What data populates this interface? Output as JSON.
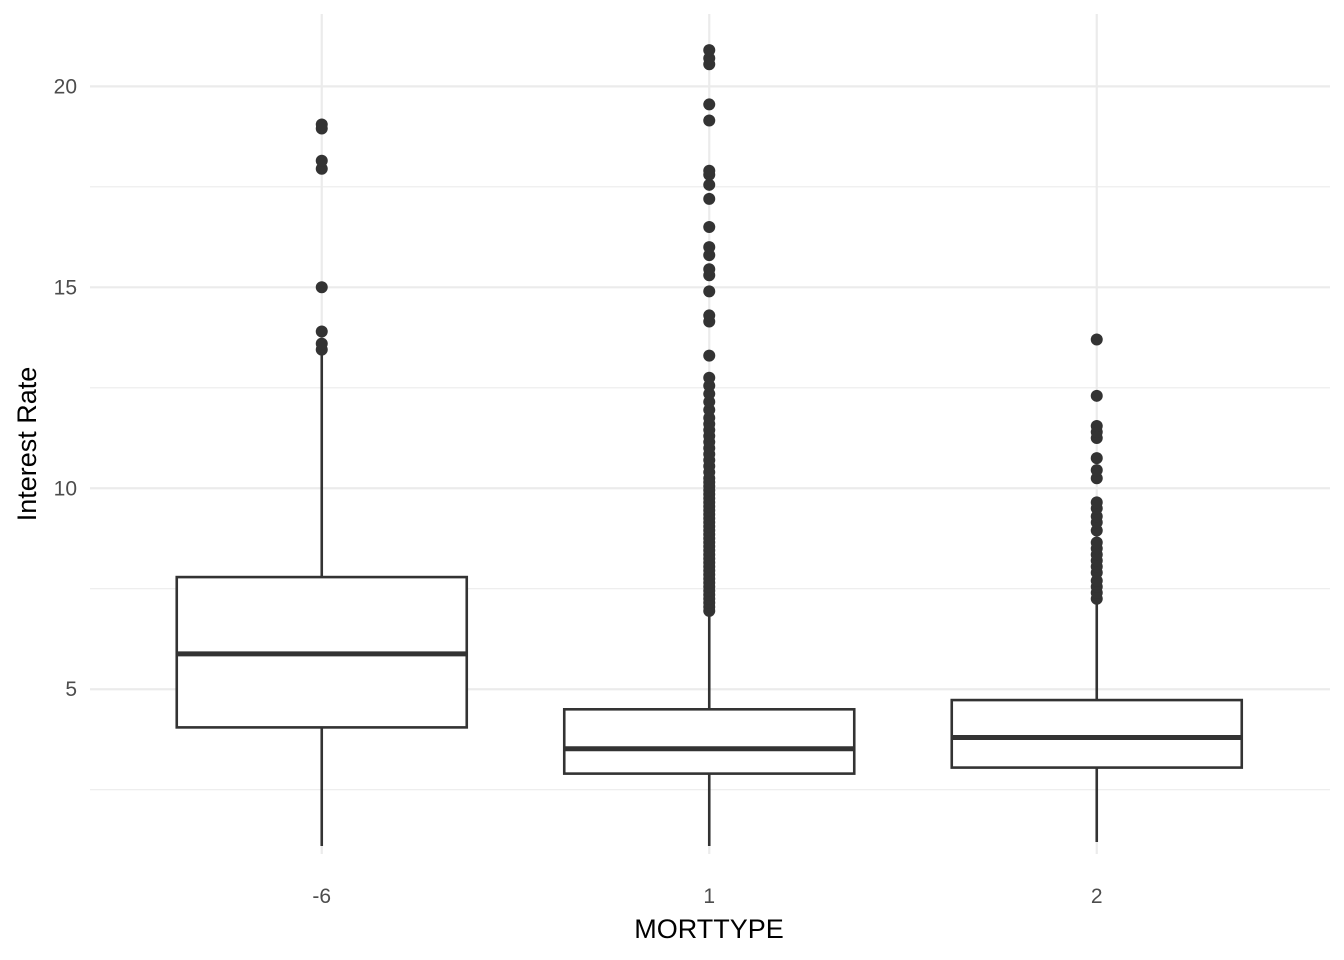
{
  "chart_data": {
    "type": "boxplot",
    "title": "",
    "xlabel": "MORTTYPE",
    "ylabel": "Interest Rate",
    "categories": [
      "-6",
      "1",
      "2"
    ],
    "y_ticks": [
      5,
      10,
      15,
      20
    ],
    "y_tick_labels": [
      "5",
      "10",
      "15",
      "20"
    ],
    "ylim": [
      0.9,
      21.8
    ],
    "grid": true,
    "colors": {
      "box_stroke": "#333333",
      "grid": "#ebebeb",
      "background": "#ffffff"
    },
    "boxes": [
      {
        "category": "-6",
        "whisker_low": 1.1,
        "q1": 4.05,
        "median": 5.88,
        "q3": 7.79,
        "whisker_high": 13.45,
        "outliers": [
          13.45,
          13.6,
          13.9,
          15.0,
          17.95,
          18.15,
          18.95,
          19.05
        ]
      },
      {
        "category": "1",
        "whisker_low": 1.1,
        "q1": 2.9,
        "median": 3.52,
        "q3": 4.5,
        "whisker_high": 6.9,
        "outliers": [
          6.95,
          7.05,
          7.15,
          7.25,
          7.35,
          7.45,
          7.55,
          7.65,
          7.75,
          7.85,
          7.95,
          8.05,
          8.15,
          8.25,
          8.35,
          8.45,
          8.55,
          8.65,
          8.75,
          8.85,
          8.95,
          9.05,
          9.15,
          9.25,
          9.35,
          9.45,
          9.55,
          9.65,
          9.75,
          9.85,
          9.95,
          10.05,
          10.15,
          10.25,
          10.4,
          10.55,
          10.7,
          10.85,
          11.0,
          11.15,
          11.3,
          11.45,
          11.6,
          11.75,
          11.95,
          12.15,
          12.35,
          12.55,
          12.75,
          13.3,
          14.15,
          14.3,
          14.9,
          15.3,
          15.45,
          15.8,
          16.0,
          16.5,
          17.2,
          17.55,
          17.8,
          17.9,
          19.15,
          19.55,
          20.55,
          20.7,
          20.9
        ]
      },
      {
        "category": "2",
        "whisker_low": 1.2,
        "q1": 3.05,
        "median": 3.8,
        "q3": 4.73,
        "whisker_high": 7.2,
        "outliers": [
          7.25,
          7.4,
          7.55,
          7.7,
          7.9,
          8.05,
          8.2,
          8.35,
          8.5,
          8.65,
          8.95,
          9.15,
          9.3,
          9.5,
          9.65,
          10.25,
          10.45,
          10.75,
          11.25,
          11.4,
          11.55,
          12.3,
          13.7
        ]
      }
    ]
  }
}
